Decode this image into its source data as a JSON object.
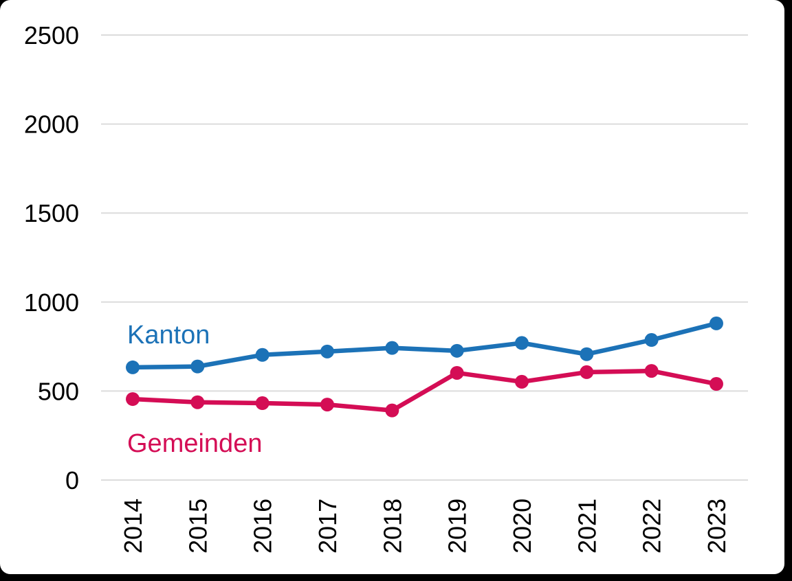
{
  "chart_data": {
    "type": "line",
    "title": "",
    "xlabel": "",
    "ylabel": "",
    "categories": [
      "2014",
      "2015",
      "2016",
      "2017",
      "2018",
      "2019",
      "2020",
      "2021",
      "2022",
      "2023"
    ],
    "series": [
      {
        "name": "Kanton",
        "color": "#1c72b7",
        "values": [
          633,
          638,
          703,
          722,
          742,
          726,
          770,
          707,
          787,
          880
        ]
      },
      {
        "name": "Gemeinden",
        "color": "#d40d55",
        "values": [
          455,
          437,
          432,
          424,
          391,
          602,
          552,
          606,
          613,
          540
        ]
      }
    ],
    "ylim": [
      0,
      2500
    ],
    "yticks": [
      0,
      500,
      1000,
      1500,
      2000,
      2500
    ],
    "grid": true,
    "gridline_color": "#dcdcdc",
    "axis_text_color": "#000000",
    "background": "#ffffff",
    "frame_color": "#000000",
    "legend_position": "inline-labels-near-lines",
    "x_tick_rotation_deg": -90
  }
}
